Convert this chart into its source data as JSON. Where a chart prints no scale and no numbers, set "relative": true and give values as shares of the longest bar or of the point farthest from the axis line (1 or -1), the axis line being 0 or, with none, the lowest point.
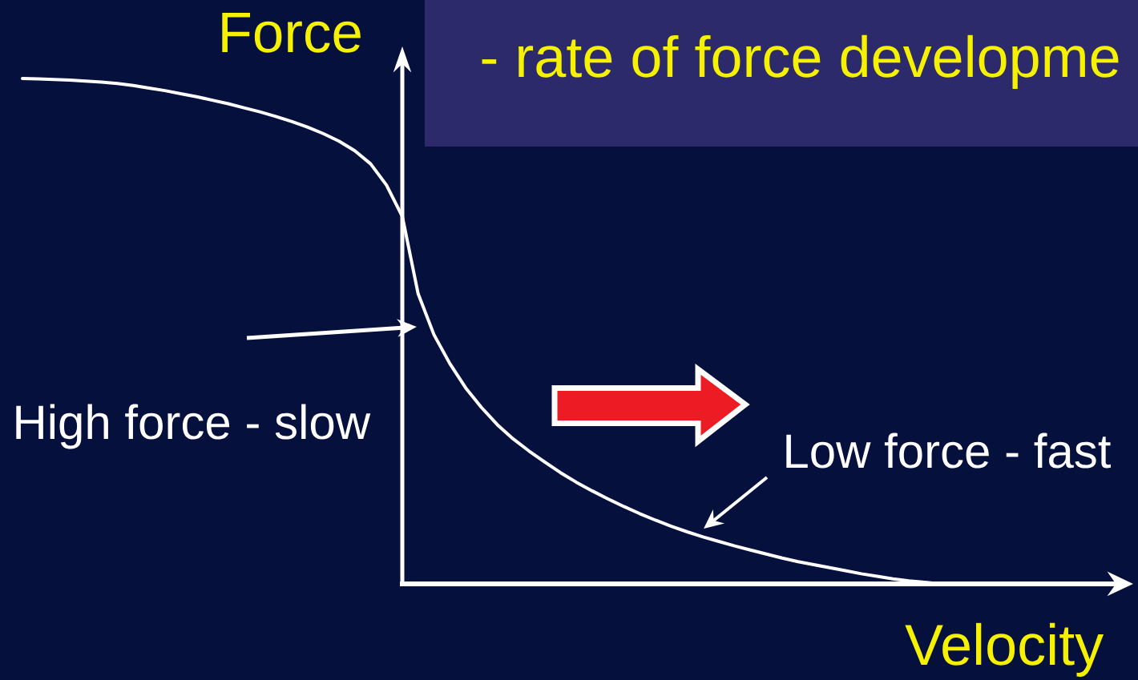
{
  "chart_data": {
    "type": "line",
    "subtitle": "- rate of force developme",
    "xlabel": "Velocity",
    "ylabel": "Force",
    "annotations": [
      "High force - slow",
      "Low force - fast"
    ],
    "categories": [
      null,
      null,
      null,
      null,
      null,
      null,
      null,
      null,
      null,
      null,
      null,
      null,
      null,
      null,
      null,
      null,
      null,
      null,
      null,
      null,
      null,
      null,
      null,
      null,
      null,
      null,
      null,
      null,
      null,
      null,
      null,
      null,
      null,
      null,
      null,
      null,
      null,
      null,
      null,
      null,
      null,
      null,
      null,
      null,
      null,
      null,
      null,
      null,
      null,
      null,
      null,
      null,
      null,
      null,
      null,
      null,
      null,
      null,
      null
    ],
    "relative": true,
    "marker": "none",
    "series": [
      {
        "color": "#ffffff",
        "values": [
          1,
          0.999,
          0.998,
          0.997,
          0.995,
          0.993,
          0.99,
          0.986,
          0.981,
          0.976,
          0.97,
          0.964,
          0.957,
          0.95,
          0.942,
          0.934,
          0.925,
          0.915,
          0.904,
          0.891,
          0.876,
          0.857,
          0.831,
          0.789,
          0.727,
          0.574,
          0.493,
          0.436,
          0.388,
          0.349,
          0.315,
          0.287,
          0.263,
          0.241,
          0.22,
          0.201,
          0.184,
          0.168,
          0.153,
          0.139,
          0.126,
          0.114,
          0.103,
          0.093,
          0.084,
          0.075,
          0.067,
          0.059,
          0.051,
          0.044,
          0.038,
          0.032,
          0.026,
          0.02,
          0.015,
          0.01,
          0.006,
          0.003,
          0
        ]
      }
    ]
  }
}
